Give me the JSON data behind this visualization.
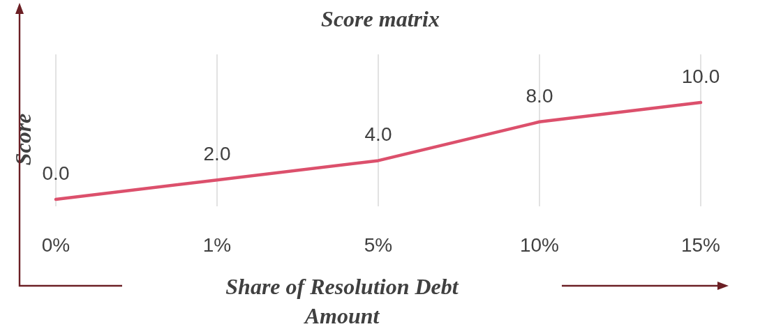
{
  "chart_data": {
    "type": "line",
    "title": "Score matrix",
    "xlabel": "Share of Resolution Debt Amount",
    "ylabel": "Score",
    "categories": [
      "0%",
      "1%",
      "5%",
      "10%",
      "15%"
    ],
    "series": [
      {
        "color": "#dc506c",
        "values": [
          0,
          2,
          4,
          8,
          10
        ],
        "value_labels": [
          "0.0",
          "2.0",
          "4.0",
          "8.0",
          "10.0"
        ]
      }
    ],
    "grid": "x",
    "marker": "none",
    "line_style": "solid"
  }
}
